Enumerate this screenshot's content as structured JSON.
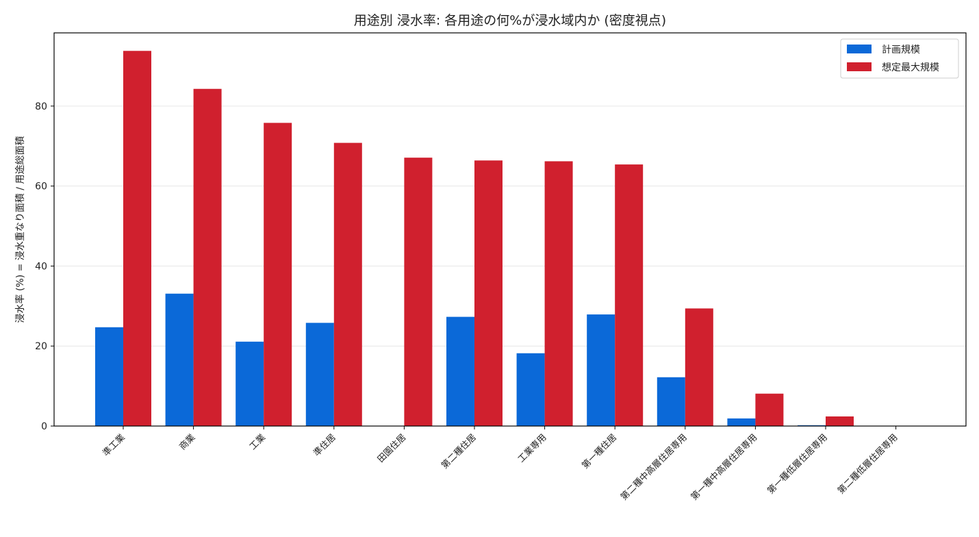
{
  "chart_data": {
    "type": "bar",
    "title": "用途別 浸水率: 各用途の何%が浸水域内か (密度視点)",
    "xlabel": "",
    "ylabel": "浸水率 (%) = 浸水重なり面積 / 用途総面積",
    "ylim": [
      0,
      98.3
    ],
    "yticks": [
      0,
      20,
      40,
      60,
      80
    ],
    "grid": "horizontal",
    "legend_position": "top-right",
    "categories": [
      "準工業",
      "商業",
      "工業",
      "準住居",
      "田園住居",
      "第二種住居",
      "工業専用",
      "第一種住居",
      "第二種中高層住居専用",
      "第一種中高層住居専用",
      "第一種低層住居専用",
      "第二種低層住居専用"
    ],
    "series": [
      {
        "name": "計画規模",
        "color": "#0b69d8",
        "values": [
          24.7,
          33.1,
          21.1,
          25.8,
          0,
          27.3,
          18.2,
          27.9,
          12.2,
          1.9,
          0.2,
          0
        ]
      },
      {
        "name": "想定最大規模",
        "color": "#d0202e",
        "values": [
          93.8,
          84.3,
          75.8,
          70.8,
          67.1,
          66.4,
          66.2,
          65.4,
          29.4,
          8.1,
          2.4,
          0
        ]
      }
    ]
  }
}
